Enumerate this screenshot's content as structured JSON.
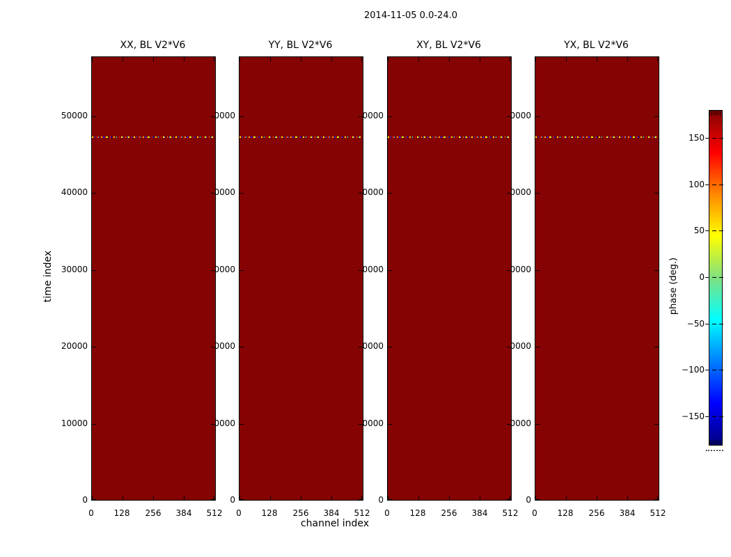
{
  "figure": {
    "title": "2014-11-05 0.0-24.0",
    "background_color": "#ffffff"
  },
  "chart_data": {
    "type": "heatmap",
    "title": "2014-11-05 0.0-24.0",
    "layout": "4 side-by-side waterfall panels sharing axes, colorbar at right",
    "panels": [
      {
        "title": "XX, BL V2*V6"
      },
      {
        "title": "YY, BL V2*V6"
      },
      {
        "title": "XY, BL V2*V6"
      },
      {
        "title": "YX, BL V2*V6"
      }
    ],
    "xlabel": "channel index",
    "ylabel": "time index",
    "x_ticks": [
      "0",
      "128",
      "256",
      "384",
      "512"
    ],
    "x_tick_values": [
      0,
      128,
      256,
      384,
      512
    ],
    "x_range": [
      0,
      512
    ],
    "y_ticks": [
      "0",
      "10000",
      "20000",
      "30000",
      "40000",
      "50000"
    ],
    "y_tick_values": [
      0,
      10000,
      20000,
      30000,
      40000,
      50000
    ],
    "y_range": [
      0,
      57600
    ],
    "colorbar": {
      "label": "phase (deg.)",
      "ticks": [
        "150",
        "100",
        "50",
        "0",
        "−50",
        "−100",
        "−150"
      ],
      "tick_values": [
        150,
        100,
        50,
        0,
        -50,
        -100,
        -150
      ],
      "range": [
        -180,
        180
      ],
      "colormap": "jet",
      "top_color": "#850303",
      "bottom_color": "#000080"
    },
    "values": {
      "uniform_phase_deg": 180,
      "uniform_color": "#850303",
      "noise_row": {
        "time_index": 47200,
        "description": "single row of random wrapped-phase values across all channels in every panel",
        "colors": [
          "#ffff00",
          "#0055ff",
          "#ff2200",
          "#00ccff",
          "#ffaa00",
          "#2222ff",
          "#66ff44",
          "#ff8800",
          "#00aaff",
          "#ffdd00"
        ]
      }
    }
  }
}
